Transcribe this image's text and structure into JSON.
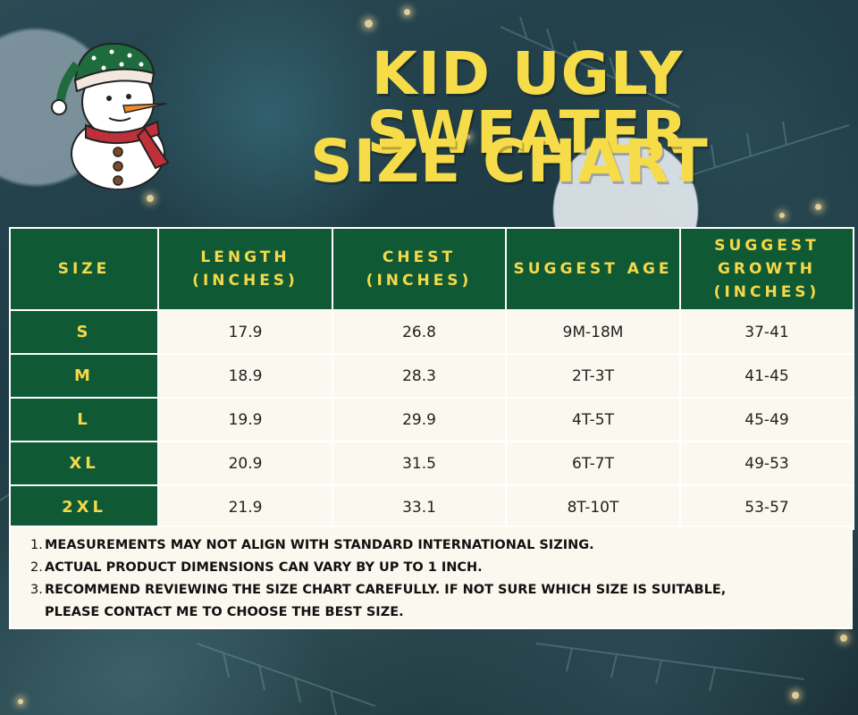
{
  "title": {
    "line1": "KID UGLY SWEATER",
    "line2": "SIZE CHART"
  },
  "table": {
    "headers": [
      "SIZE",
      "LENGTH\n(INCHES)",
      "CHEST\n(INCHES)",
      "SUGGEST AGE",
      "SUGGEST\nGROWTH\n(INCHES)"
    ],
    "rows": [
      [
        "S",
        "17.9",
        "26.8",
        "9M-18M",
        "37-41"
      ],
      [
        "M",
        "18.9",
        "28.3",
        "2T-3T",
        "41-45"
      ],
      [
        "L",
        "19.9",
        "29.9",
        "4T-5T",
        "45-49"
      ],
      [
        "XL",
        "20.9",
        "31.5",
        "6T-7T",
        "49-53"
      ],
      [
        "2XL",
        "21.9",
        "33.1",
        "8T-10T",
        "53-57"
      ]
    ]
  },
  "notes": [
    {
      "num": "1.",
      "text": "MEASUREMENTS MAY NOT ALIGN WITH STANDARD INTERNATIONAL SIZING."
    },
    {
      "num": "2.",
      "text": "ACTUAL PRODUCT DIMENSIONS CAN VARY BY UP TO 1 INCH."
    },
    {
      "num": "3.",
      "text": "RECOMMEND REVIEWING THE SIZE CHART CAREFULLY. IF NOT SURE WHICH SIZE IS SUITABLE,\nPLEASE CONTACT ME TO CHOOSE THE BEST SIZE."
    }
  ],
  "colors": {
    "header_green": "#0f5a35",
    "title_yellow": "#f7dc4a",
    "cell_bg": "#fbf8ef"
  },
  "icons": [
    "snowman-illustration"
  ]
}
